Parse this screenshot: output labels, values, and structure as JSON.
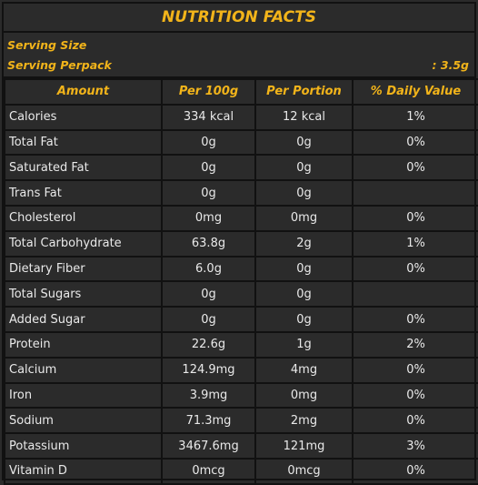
{
  "title": "NUTRITION FACTS",
  "serving": {
    "serving_size_label": "Serving Size",
    "serving_perpack_label": "Serving Perpack",
    "serving_perpack_value": ": 3.5g"
  },
  "headers": [
    "Amount",
    "Per 100g",
    "Per Portion",
    "% Daily Value"
  ],
  "rows": [
    {
      "name": "Calories",
      "per100": "334 kcal",
      "portion": "12 kcal",
      "dv": "1%"
    },
    {
      "name": "Total Fat",
      "per100": "0g",
      "portion": "0g",
      "dv": "0%"
    },
    {
      "name": "Saturated Fat",
      "per100": "0g",
      "portion": "0g",
      "dv": "0%"
    },
    {
      "name": "Trans Fat",
      "per100": "0g",
      "portion": "0g",
      "dv": ""
    },
    {
      "name": "Cholesterol",
      "per100": "0mg",
      "portion": "0mg",
      "dv": "0%"
    },
    {
      "name": "Total Carbohydrate",
      "per100": "63.8g",
      "portion": "2g",
      "dv": "1%"
    },
    {
      "name": "Dietary Fiber",
      "per100": "6.0g",
      "portion": "0g",
      "dv": "0%"
    },
    {
      "name": "Total Sugars",
      "per100": "0g",
      "portion": "0g",
      "dv": ""
    },
    {
      "name": "Added Sugar",
      "per100": "0g",
      "portion": "0g",
      "dv": "0%"
    },
    {
      "name": "Protein",
      "per100": "22.6g",
      "portion": "1g",
      "dv": "2%"
    },
    {
      "name": "Calcium",
      "per100": "124.9mg",
      "portion": "4mg",
      "dv": "0%"
    },
    {
      "name": "Iron",
      "per100": "3.9mg",
      "portion": "0mg",
      "dv": "0%"
    },
    {
      "name": "Sodium",
      "per100": "71.3mg",
      "portion": "2mg",
      "dv": "0%"
    },
    {
      "name": "Potassium",
      "per100": "3467.6mg",
      "portion": "121mg",
      "dv": "3%"
    },
    {
      "name": "Vitamin D",
      "per100": "0mcg",
      "portion": "0mcg",
      "dv": "0%"
    }
  ]
}
